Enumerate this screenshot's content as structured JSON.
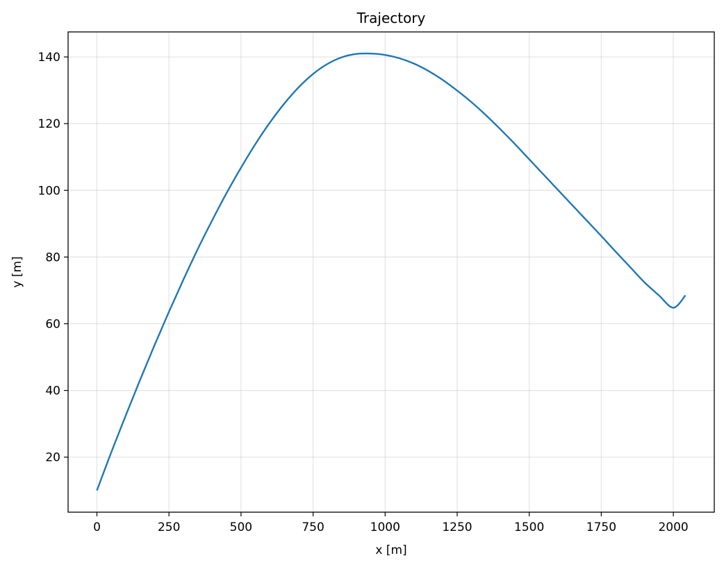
{
  "chart_data": {
    "type": "line",
    "title": "Trajectory",
    "xlabel": "x [m]",
    "ylabel": "y [m]",
    "xlim": [
      -100,
      2142
    ],
    "ylim": [
      3.5,
      147.5
    ],
    "xticks": [
      0,
      250,
      500,
      750,
      1000,
      1250,
      1500,
      1750,
      2000
    ],
    "yticks": [
      20,
      40,
      60,
      80,
      100,
      120,
      140
    ],
    "grid": true,
    "series": [
      {
        "color": "#1f77b4",
        "x": [
          0,
          50,
          100,
          150,
          200,
          250,
          300,
          350,
          400,
          450,
          500,
          550,
          600,
          650,
          700,
          750,
          800,
          850,
          900,
          950,
          1000,
          1050,
          1100,
          1150,
          1200,
          1250,
          1300,
          1350,
          1400,
          1450,
          1500,
          1550,
          1600,
          1650,
          1700,
          1750,
          1800,
          1850,
          1900,
          1950,
          2000,
          2042
        ],
        "y": [
          10,
          21.5,
          32.5,
          43.2,
          53.6,
          63.6,
          73.2,
          82.4,
          91.0,
          99.2,
          106.8,
          113.9,
          120.3,
          126.0,
          130.9,
          134.9,
          137.9,
          139.9,
          140.9,
          141.0,
          140.6,
          139.6,
          138.0,
          135.8,
          133.1,
          129.9,
          126.4,
          122.5,
          118.3,
          113.9,
          109.3,
          104.7,
          100.1,
          95.5,
          90.9,
          86.3,
          81.6,
          77.0,
          72.4,
          68.5,
          64.8,
          68.5
        ]
      }
    ]
  }
}
